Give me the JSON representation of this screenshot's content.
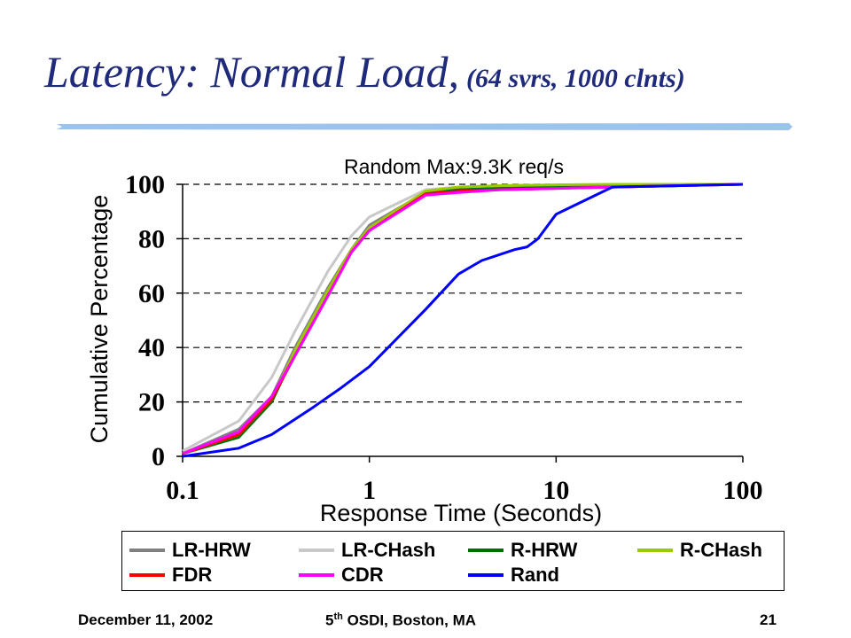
{
  "slide": {
    "title_main": "Latency: Normal Load,",
    "title_sub": "(64 svrs, 1000 clnts)",
    "footer_date": "December 11, 2002",
    "footer_conf_num": "5",
    "footer_conf_sup": "th",
    "footer_conf_rest": " OSDI, Boston, MA",
    "page_number": "21"
  },
  "chart_data": {
    "type": "line",
    "title": "Random Max:9.3K req/s",
    "xlabel": "Response Time (Seconds)",
    "ylabel": "Cumulative Percentage",
    "xscale": "log",
    "xlim": [
      0.1,
      100
    ],
    "ylim": [
      0,
      100
    ],
    "xticks": [
      "0.1",
      "1",
      "10",
      "100"
    ],
    "yticks": [
      "0",
      "20",
      "40",
      "60",
      "80",
      "100"
    ],
    "grid": "horizontal dashed",
    "legend_position": "bottom",
    "series": [
      {
        "name": "LR-HRW",
        "color": "#808080",
        "x": [
          0.1,
          0.2,
          0.3,
          0.4,
          0.6,
          0.8,
          1,
          2,
          3,
          5,
          10,
          20,
          100
        ],
        "y": [
          1,
          10,
          22,
          40,
          62,
          76,
          85,
          97,
          98,
          99,
          99,
          99.5,
          100
        ]
      },
      {
        "name": "LR-CHash",
        "color": "#c8c8c8",
        "x": [
          0.1,
          0.2,
          0.3,
          0.4,
          0.6,
          0.8,
          1,
          2,
          3,
          5,
          10,
          20,
          100
        ],
        "y": [
          2,
          13,
          29,
          46,
          68,
          81,
          88,
          98,
          99,
          99.5,
          99.7,
          99.8,
          100
        ]
      },
      {
        "name": "R-HRW",
        "color": "#007000",
        "x": [
          0.1,
          0.2,
          0.3,
          0.4,
          0.6,
          0.8,
          1,
          2,
          3,
          5,
          10,
          20,
          100
        ],
        "y": [
          1,
          7,
          20,
          38,
          60,
          75,
          83,
          97,
          98,
          98.5,
          99,
          99.5,
          100
        ]
      },
      {
        "name": "R-CHash",
        "color": "#99cc00",
        "x": [
          0.1,
          0.2,
          0.3,
          0.4,
          0.6,
          0.8,
          1,
          2,
          3,
          5,
          10,
          20,
          100
        ],
        "y": [
          1,
          8,
          21,
          39,
          61,
          76,
          84,
          97.5,
          99,
          99.5,
          99.8,
          100,
          100
        ]
      },
      {
        "name": "FDR",
        "color": "#ff0000",
        "x": [
          0.1,
          0.2,
          0.3,
          0.4,
          0.6,
          0.8,
          1,
          2,
          3,
          5,
          10,
          20,
          100
        ],
        "y": [
          1,
          8,
          21,
          37,
          59,
          75,
          83,
          96.5,
          97.5,
          98,
          98.5,
          99,
          100
        ]
      },
      {
        "name": "CDR",
        "color": "#ff00ff",
        "x": [
          0.1,
          0.2,
          0.3,
          0.4,
          0.6,
          0.8,
          1,
          2,
          3,
          5,
          10,
          20,
          100
        ],
        "y": [
          1,
          9,
          22,
          37,
          59,
          75,
          83,
          96,
          97,
          98,
          98.5,
          99,
          100
        ]
      },
      {
        "name": "Rand",
        "color": "#0000ff",
        "x": [
          0.1,
          0.2,
          0.3,
          0.5,
          0.7,
          1,
          2,
          3,
          4,
          6,
          7,
          8,
          10,
          20,
          100
        ],
        "y": [
          0,
          3,
          8,
          18,
          25,
          33,
          54,
          67,
          72,
          76,
          77,
          80,
          89,
          99,
          100
        ]
      }
    ]
  }
}
